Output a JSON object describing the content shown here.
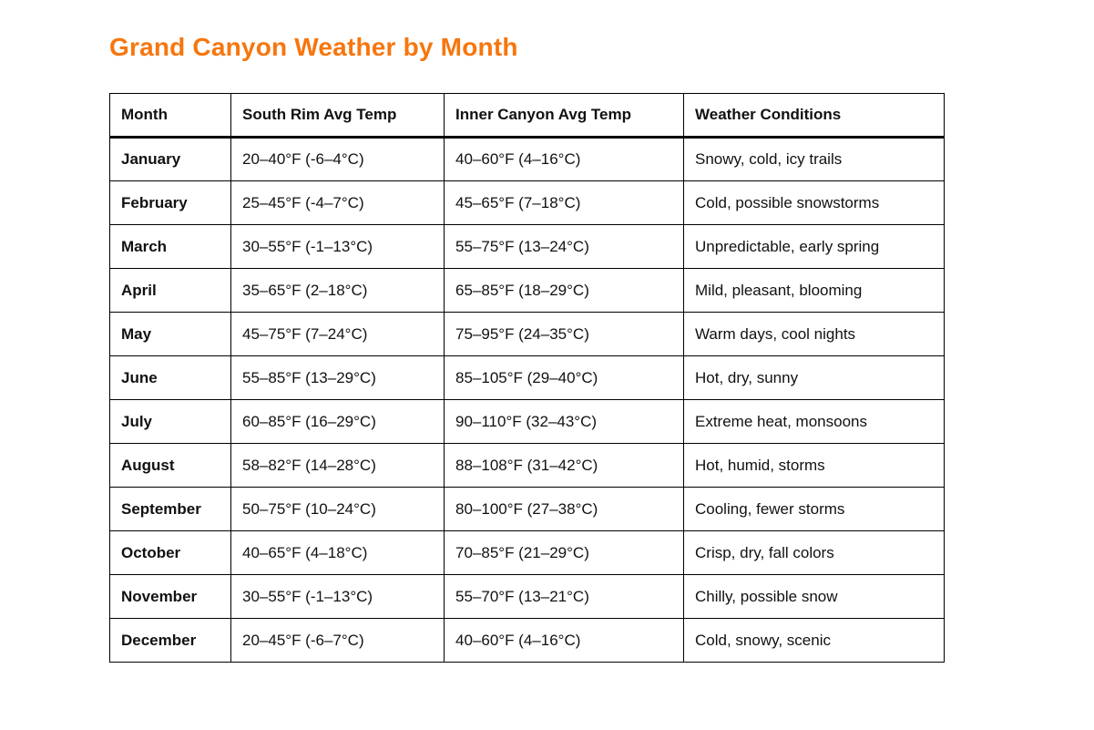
{
  "page": {
    "title": "Grand Canyon Weather by Month",
    "title_color": "#F7760D",
    "background_color": "#FFFFFF",
    "border_color": "#000000"
  },
  "table": {
    "columns": [
      "Month",
      "South Rim Avg Temp",
      "Inner Canyon Avg Temp",
      "Weather Conditions"
    ],
    "rows": [
      {
        "month": "January",
        "south_rim": "20–40°F (-6–4°C)",
        "inner_canyon": "40–60°F (4–16°C)",
        "conditions": "Snowy, cold, icy trails"
      },
      {
        "month": "February",
        "south_rim": "25–45°F (-4–7°C)",
        "inner_canyon": "45–65°F (7–18°C)",
        "conditions": "Cold, possible snowstorms"
      },
      {
        "month": "March",
        "south_rim": "30–55°F (-1–13°C)",
        "inner_canyon": "55–75°F (13–24°C)",
        "conditions": "Unpredictable, early spring"
      },
      {
        "month": "April",
        "south_rim": "35–65°F (2–18°C)",
        "inner_canyon": "65–85°F (18–29°C)",
        "conditions": "Mild, pleasant, blooming"
      },
      {
        "month": "May",
        "south_rim": "45–75°F (7–24°C)",
        "inner_canyon": "75–95°F (24–35°C)",
        "conditions": "Warm days, cool nights"
      },
      {
        "month": "June",
        "south_rim": "55–85°F (13–29°C)",
        "inner_canyon": "85–105°F (29–40°C)",
        "conditions": "Hot, dry, sunny"
      },
      {
        "month": "July",
        "south_rim": "60–85°F (16–29°C)",
        "inner_canyon": "90–110°F (32–43°C)",
        "conditions": "Extreme heat, monsoons"
      },
      {
        "month": "August",
        "south_rim": "58–82°F (14–28°C)",
        "inner_canyon": "88–108°F (31–42°C)",
        "conditions": "Hot, humid, storms"
      },
      {
        "month": "September",
        "south_rim": "50–75°F (10–24°C)",
        "inner_canyon": "80–100°F (27–38°C)",
        "conditions": "Cooling, fewer storms"
      },
      {
        "month": "October",
        "south_rim": "40–65°F (4–18°C)",
        "inner_canyon": "70–85°F (21–29°C)",
        "conditions": "Crisp, dry, fall colors"
      },
      {
        "month": "November",
        "south_rim": "30–55°F (-1–13°C)",
        "inner_canyon": "55–70°F (13–21°C)",
        "conditions": "Chilly, possible snow"
      },
      {
        "month": "December",
        "south_rim": "20–45°F (-6–7°C)",
        "inner_canyon": "40–60°F (4–16°C)",
        "conditions": "Cold, snowy, scenic"
      }
    ]
  }
}
